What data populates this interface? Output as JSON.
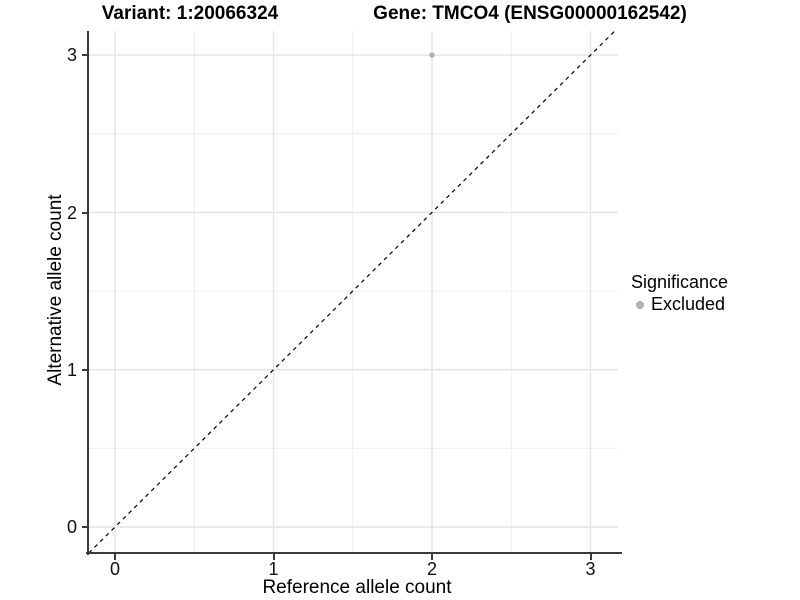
{
  "titles": {
    "variant": "Variant: 1:20066324",
    "gene": "Gene: TMCO4 (ENSG00000162542)"
  },
  "chart_data": {
    "type": "scatter",
    "title_left": "Variant: 1:20066324",
    "title_right": "Gene: TMCO4 (ENSG00000162542)",
    "xlabel": "Reference allele count",
    "ylabel": "Alternative allele count",
    "xlim": [
      -0.17,
      3.17
    ],
    "ylim": [
      -0.17,
      3.17
    ],
    "x_ticks": [
      0,
      1,
      2,
      3
    ],
    "y_ticks": [
      0,
      1,
      2,
      3
    ],
    "grid_minor": [
      0.5,
      1.5,
      2.5
    ],
    "grid": true,
    "points": [
      {
        "x": 2,
        "y": 3,
        "significance": "Excluded",
        "color": "#b1b1b1"
      }
    ],
    "reference_line": {
      "style": "dashed",
      "slope": 1,
      "intercept": 0,
      "color": "#000000"
    },
    "legend": {
      "position": "right",
      "title": "Significance",
      "items": [
        {
          "label": "Excluded",
          "color": "#b1b1b1"
        }
      ]
    },
    "colors": {
      "excluded_point": "#b1b1b1",
      "grid_major": "#e3e3e3",
      "grid_minor": "#ececec",
      "axis_line": "#3a3a3a",
      "background": "#ffffff"
    }
  }
}
